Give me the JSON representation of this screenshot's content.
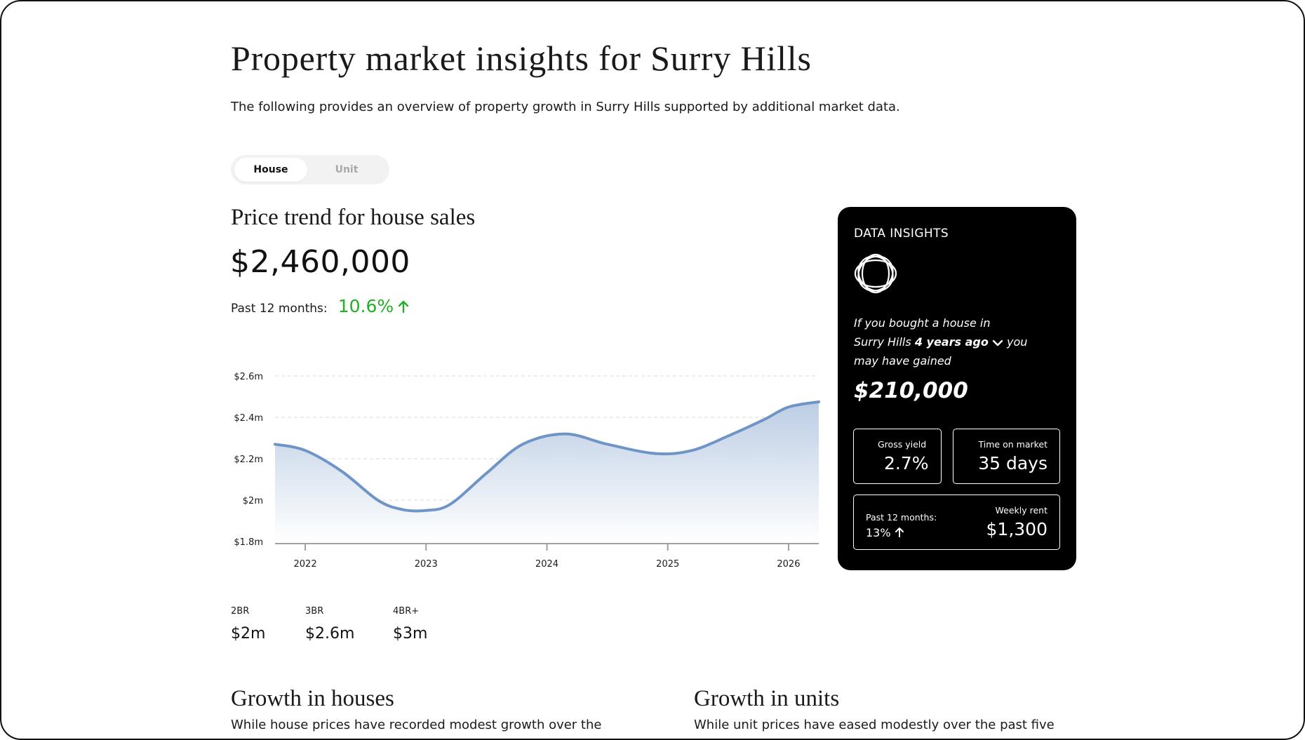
{
  "page": {
    "title": "Property market insights for Surry Hills",
    "subtitle": "The following provides an overview of property growth in Surry Hills supported by additional market data."
  },
  "toggle": {
    "options": [
      "House",
      "Unit"
    ],
    "selected": "House"
  },
  "trend": {
    "title": "Price trend for house sales",
    "price": "$2,460,000",
    "change_label": "Past 12 months:",
    "change_value": "10.6%",
    "change_direction": "up",
    "change_color": "#22b024"
  },
  "chart_data": {
    "type": "area",
    "title": "",
    "xlabel": "",
    "ylabel": "",
    "x_ticks": [
      "2022",
      "2023",
      "2024",
      "2025",
      "2026"
    ],
    "y_ticks": [
      "$2.6m",
      "$2.4m",
      "$2.2m",
      "$2m",
      "$1.8m"
    ],
    "y_tick_values": [
      2.6,
      2.4,
      2.2,
      2.0,
      1.8
    ],
    "ylim": [
      1.8,
      2.6
    ],
    "xlim": [
      2021.75,
      2026.25
    ],
    "grid": true,
    "line_color": "#6f95c7",
    "series": [
      {
        "x": [
          2021.75,
          2022.0,
          2022.3,
          2022.6,
          2022.8,
          2023.0,
          2023.2,
          2023.5,
          2023.8,
          2024.15,
          2024.5,
          2024.9,
          2025.2,
          2025.5,
          2025.8,
          2026.0,
          2026.25
        ],
        "y": [
          2.27,
          2.24,
          2.14,
          2.0,
          1.955,
          1.95,
          1.98,
          2.13,
          2.27,
          2.32,
          2.27,
          2.225,
          2.24,
          2.31,
          2.39,
          2.45,
          2.475
        ]
      }
    ]
  },
  "bedrooms": [
    {
      "label": "2BR",
      "value": "$2m"
    },
    {
      "label": "3BR",
      "value": "$2.6m"
    },
    {
      "label": "4BR+",
      "value": "$3m"
    }
  ],
  "insights": {
    "heading": "DATA INSIGHTS",
    "line1": "If you bought a house in",
    "line2_prefix": "Surry Hills",
    "period": "4 years ago",
    "line2_suffix": "you",
    "line3": "may have gained",
    "gain": "$210,000",
    "gross_yield_label": "Gross yield",
    "gross_yield_value": "2.7%",
    "time_on_market_label": "Time on market",
    "time_on_market_value": "35 days",
    "rent_change_label": "Past 12 months:",
    "rent_change_value": "13%",
    "weekly_rent_label": "Weekly rent",
    "weekly_rent_value": "$1,300"
  },
  "growth": {
    "houses_title": "Growth in houses",
    "houses_text": "While house prices have recorded modest growth over the",
    "units_title": "Growth in units",
    "units_text": "While unit prices have eased modestly over the past five"
  }
}
